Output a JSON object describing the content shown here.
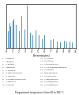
{
  "chart_data": {
    "type": "stem",
    "title": "Programmed temperature from 60 to 300 °C",
    "x_label": "Time(minutes)",
    "x": [
      0.3,
      0.48,
      0.65,
      0.95,
      1.18,
      1.55,
      1.95,
      2.38,
      2.82,
      3.28,
      3.75,
      4.18,
      4.65,
      5.1,
      5.58,
      6.05,
      7.0,
      7.42,
      8.0,
      8.45,
      9.1,
      9.52,
      9.98,
      10.42
    ],
    "values": [
      0.38,
      0.55,
      0.48,
      0.62,
      0.65,
      0.52,
      0.38,
      0.72,
      0.42,
      0.95,
      0.34,
      0.28,
      0.4,
      0.28,
      0.2,
      0.28,
      0.18,
      0.2,
      0.14,
      0.12,
      0.16,
      0.13,
      0.14,
      0.11
    ],
    "xlim": [
      0,
      11
    ],
    "xticks": [
      0,
      1,
      2,
      3,
      4,
      5,
      6,
      7,
      8,
      9,
      10,
      11
    ],
    "ylim": [
      0,
      1.0
    ],
    "tick_labels": "x",
    "annotations": [
      "1.   Propane",
      "2.   i-Butane",
      "3.   n-Butane",
      "4.   i-Pentane",
      "5.   n-Pentane",
      "6.   2-Methylpentane",
      "7.   n-Hexane",
      "8.   2,4-Dimethylpentane",
      "9.   n-Heptane",
      "10.  Toluene",
      "11.  n-Octane",
      "12.  m-Xylene",
      "13.  Propylbenzene",
      "14.  1,2,4-Trimethylbenzene",
      "15.  n-Decane",
      "16.  Butylbenzene",
      "17.  n-Dodecane",
      "18.  n-Tetradecane",
      "19.  n-Hexadecane",
      "20.  n-Octadecane"
    ]
  }
}
